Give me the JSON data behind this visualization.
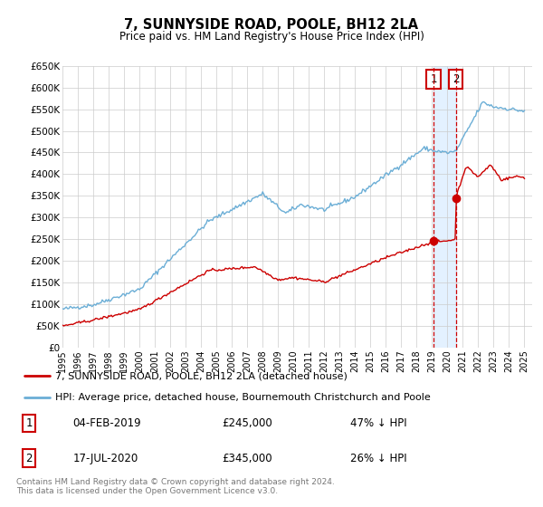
{
  "title": "7, SUNNYSIDE ROAD, POOLE, BH12 2LA",
  "subtitle": "Price paid vs. HM Land Registry's House Price Index (HPI)",
  "legend_line1": "7, SUNNYSIDE ROAD, POOLE, BH12 2LA (detached house)",
  "legend_line2": "HPI: Average price, detached house, Bournemouth Christchurch and Poole",
  "footer": "Contains HM Land Registry data © Crown copyright and database right 2024.\nThis data is licensed under the Open Government Licence v3.0.",
  "sale1_date": "04-FEB-2019",
  "sale1_price": "£245,000",
  "sale1_hpi": "47% ↓ HPI",
  "sale1_year": 2019.09,
  "sale1_price_val": 245000,
  "sale2_date": "17-JUL-2020",
  "sale2_price": "£345,000",
  "sale2_hpi": "26% ↓ HPI",
  "sale2_year": 2020.54,
  "sale2_price_val": 345000,
  "hpi_color": "#6baed6",
  "price_color": "#cc0000",
  "marker_color": "#cc0000",
  "vline_color": "#cc0000",
  "box_color": "#cc0000",
  "shade_color": "#ddeeff",
  "ylim": [
    0,
    650000
  ],
  "xlim_start": 1995.0,
  "xlim_end": 2025.5,
  "yticks": [
    0,
    50000,
    100000,
    150000,
    200000,
    250000,
    300000,
    350000,
    400000,
    450000,
    500000,
    550000,
    600000,
    650000
  ],
  "ytick_labels": [
    "£0",
    "£50K",
    "£100K",
    "£150K",
    "£200K",
    "£250K",
    "£300K",
    "£350K",
    "£400K",
    "£450K",
    "£500K",
    "£550K",
    "£600K",
    "£650K"
  ],
  "xticks": [
    1995,
    1996,
    1997,
    1998,
    1999,
    2000,
    2001,
    2002,
    2003,
    2004,
    2005,
    2006,
    2007,
    2008,
    2009,
    2010,
    2011,
    2012,
    2013,
    2014,
    2015,
    2016,
    2017,
    2018,
    2019,
    2020,
    2021,
    2022,
    2023,
    2024,
    2025
  ],
  "background_color": "#ffffff",
  "grid_color": "#cccccc"
}
